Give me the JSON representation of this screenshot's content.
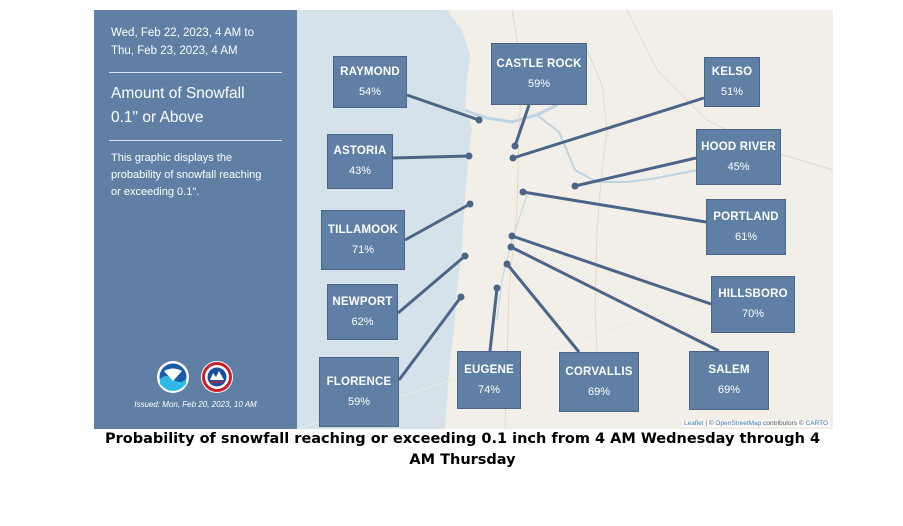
{
  "panel": {
    "date_range_line1": "Wed, Feb 22, 2023, 4 AM to",
    "date_range_line2": "Thu, Feb 23, 2023, 4 AM",
    "title_line1": "Amount of Snowfall",
    "title_line2": "0.1\" or Above",
    "desc_line1": "This graphic displays the",
    "desc_line2": "probability of snowfall reaching",
    "desc_line3": "or exceeding 0.1\".",
    "issued": "Issued: Mon, Feb 20, 2023, 10 AM",
    "logos": [
      "noaa-logo",
      "nws-logo"
    ]
  },
  "cities": [
    {
      "name": "RAYMOND",
      "probability": "54%"
    },
    {
      "name": "CASTLE ROCK",
      "probability": "59%"
    },
    {
      "name": "KELSO",
      "probability": "51%"
    },
    {
      "name": "ASTORIA",
      "probability": "43%"
    },
    {
      "name": "HOOD RIVER",
      "probability": "45%"
    },
    {
      "name": "TILLAMOOK",
      "probability": "71%"
    },
    {
      "name": "PORTLAND",
      "probability": "61%"
    },
    {
      "name": "NEWPORT",
      "probability": "62%"
    },
    {
      "name": "HILLSBORO",
      "probability": "70%"
    },
    {
      "name": "FLORENCE",
      "probability": "59%"
    },
    {
      "name": "EUGENE",
      "probability": "74%"
    },
    {
      "name": "CORVALLIS",
      "probability": "69%"
    },
    {
      "name": "SALEM",
      "probability": "69%"
    }
  ],
  "attribution": {
    "leaflet": "Leaflet",
    "sep1": " | © ",
    "osm": "OpenStreetMap",
    "contrib": " contributors © ",
    "carto": "CARTO"
  },
  "caption": {
    "line1": "Probability of snowfall reaching or exceeding 0.1 inch from 4 AM Wednesday through 4",
    "line2": "AM Thursday"
  },
  "colors": {
    "panel": "#5f7fa5",
    "land": "#f1efe7",
    "ocean": "#d5e2ea",
    "leader": "#4a6588"
  }
}
